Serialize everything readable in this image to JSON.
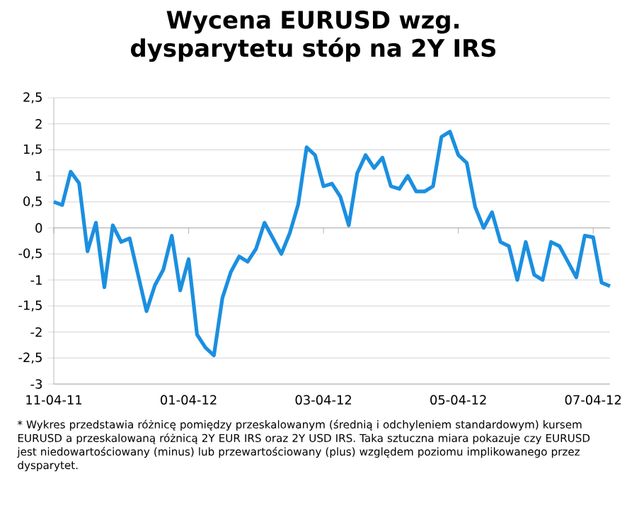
{
  "chart_data": {
    "type": "line",
    "title": "Wycena EURUSD wzg. dysparytetu stóp na 2Y IRS",
    "categories": [
      "11-04-11",
      null,
      null,
      null,
      null,
      null,
      null,
      null,
      null,
      null,
      null,
      null,
      null,
      null,
      null,
      null,
      "01-04-12",
      null,
      null,
      null,
      null,
      null,
      null,
      null,
      null,
      null,
      null,
      null,
      null,
      null,
      null,
      null,
      "03-04-12",
      null,
      null,
      null,
      null,
      null,
      null,
      null,
      null,
      null,
      null,
      null,
      null,
      null,
      null,
      null,
      "05-04-12",
      null,
      null,
      null,
      null,
      null,
      null,
      null,
      null,
      null,
      null,
      null,
      null,
      null,
      null,
      null,
      "07-04-12",
      null,
      null
    ],
    "series": [
      {
        "color": "#1b8fe0",
        "values": [
          0.5,
          0.44,
          1.08,
          0.86,
          -0.45,
          0.1,
          -1.14,
          0.05,
          -0.27,
          -0.2,
          -0.9,
          -1.6,
          -1.1,
          -0.8,
          -0.15,
          -1.2,
          -0.6,
          -2.05,
          -2.3,
          -2.45,
          -1.35,
          -0.85,
          -0.55,
          -0.65,
          -0.4,
          0.1,
          -0.2,
          -0.5,
          -0.1,
          0.45,
          1.55,
          1.4,
          0.8,
          0.85,
          0.6,
          0.05,
          1.05,
          1.4,
          1.15,
          1.35,
          0.8,
          0.75,
          1.0,
          0.7,
          0.7,
          0.8,
          1.75,
          1.85,
          1.4,
          1.25,
          0.4,
          0.0,
          0.3,
          -0.27,
          -0.35,
          -1.0,
          -0.27,
          -0.9,
          -1.0,
          -0.27,
          -0.35,
          -0.65,
          -0.95,
          -0.15,
          -0.18,
          -1.05,
          -1.12
        ]
      }
    ],
    "ylim": [
      -3,
      2.5
    ],
    "yticks": [
      {
        "value": -3,
        "label": "-3"
      },
      {
        "value": -2.5,
        "label": "-2,5"
      },
      {
        "value": -2,
        "label": "-2"
      },
      {
        "value": -1.5,
        "label": "-1,5"
      },
      {
        "value": -1,
        "label": "-1"
      },
      {
        "value": -0.5,
        "label": "-0,5"
      },
      {
        "value": 0,
        "label": "0"
      },
      {
        "value": 0.5,
        "label": "0,5"
      },
      {
        "value": 1,
        "label": "1"
      },
      {
        "value": 1.5,
        "label": "1,5"
      },
      {
        "value": 2,
        "label": "2"
      },
      {
        "value": 2.5,
        "label": "2,5"
      }
    ],
    "grid": "y",
    "annotations": [
      "* Wykres przedstawia różnicę pomiędzy przeskalowanym (średnią i odchyleniem standardowym) kursem EURUSD a przeskalowaną różnicą 2Y EUR IRS oraz 2Y USD IRS. Taka sztuczna miara pokazuje czy EURUSD jest niedowartościowany (minus) lub przewartościowany (plus) względem poziomu implikowanego przez dysparytet."
    ]
  }
}
